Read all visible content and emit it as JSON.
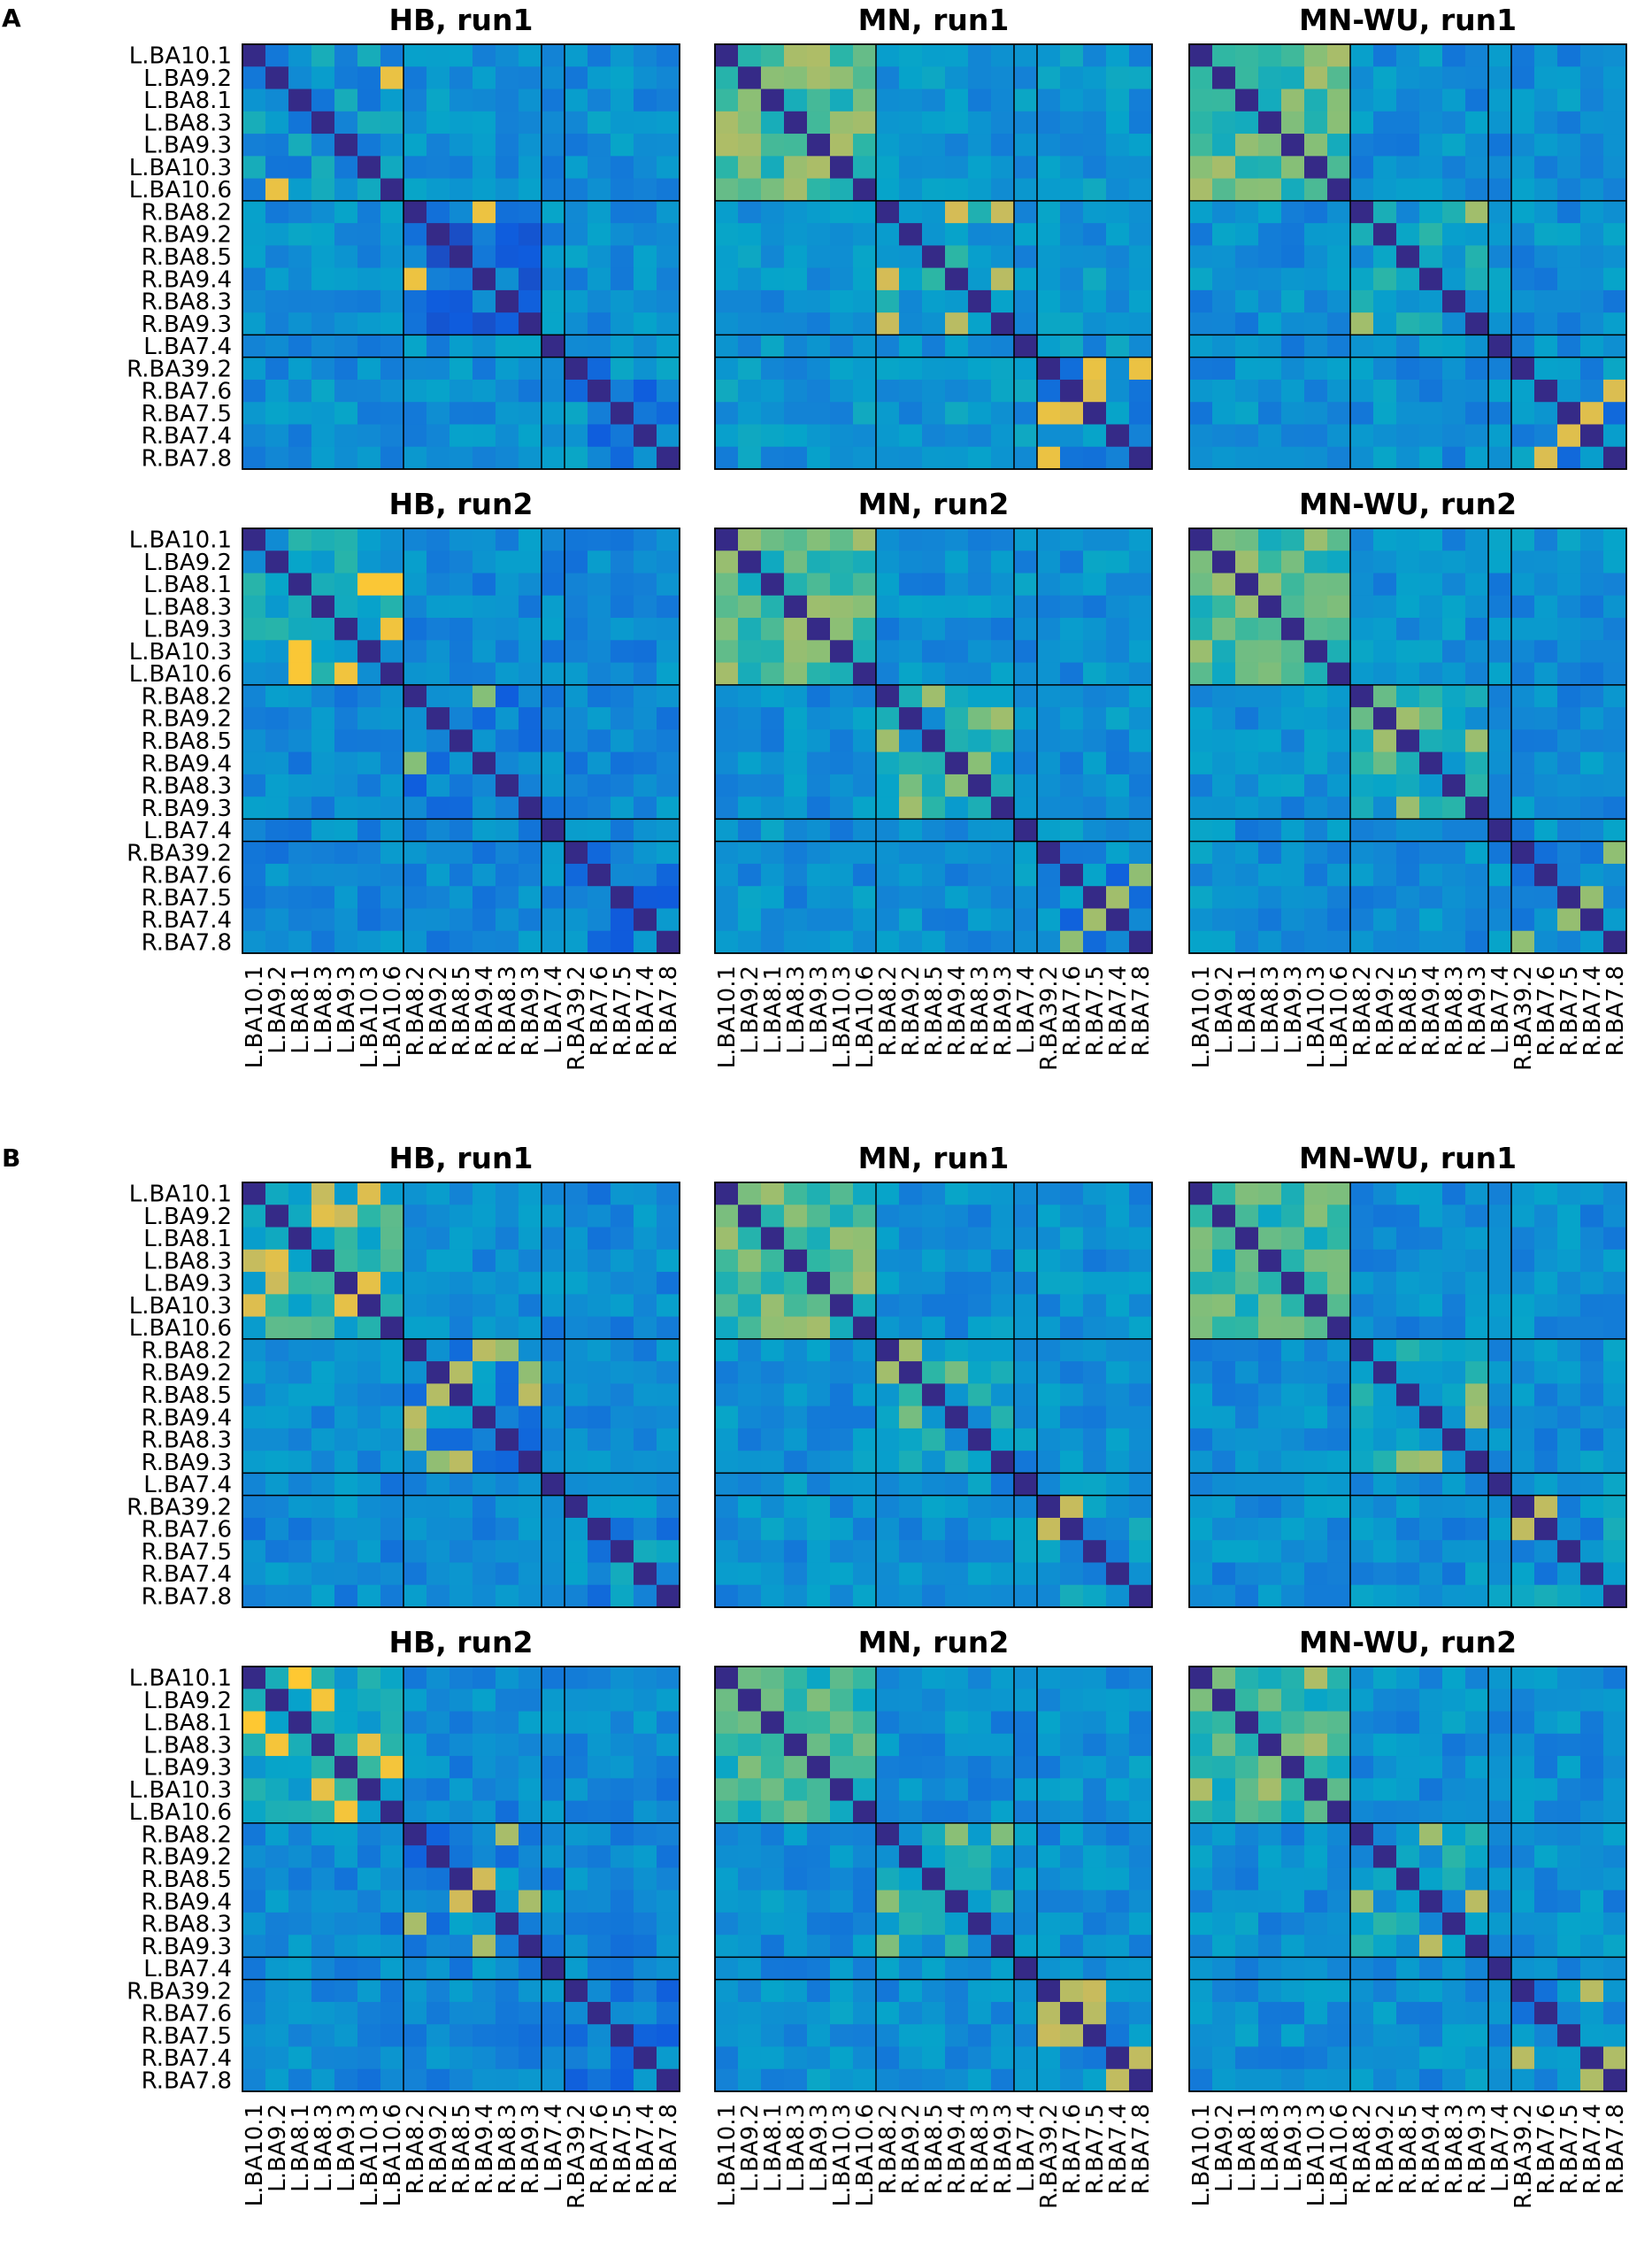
{
  "figure": {
    "panel_labels": [
      "A",
      "B"
    ],
    "labels": [
      "L.BA10.1",
      "L.BA9.2",
      "L.BA8.1",
      "L.BA8.3",
      "L.BA9.3",
      "L.BA10.3",
      "L.BA10.6",
      "R.BA8.2",
      "R.BA9.2",
      "R.BA8.5",
      "R.BA9.4",
      "R.BA8.3",
      "R.BA9.3",
      "L.BA7.4",
      "R.BA39.2",
      "R.BA7.6",
      "R.BA7.5",
      "R.BA7.4",
      "R.BA7.8"
    ],
    "groups": [
      [
        0,
        6
      ],
      [
        7,
        12
      ],
      [
        13,
        13
      ],
      [
        14,
        18
      ]
    ],
    "colormap": [
      "#352a87",
      "#0f5cdd",
      "#1481d6",
      "#06a4ca",
      "#2eb7a4",
      "#87bf77",
      "#d1bb59",
      "#fec832",
      "#f9fb0e"
    ]
  },
  "chart_data": [
    {
      "type": "heatmap",
      "panel": "A",
      "title": "HB, run1",
      "base": [
        0.34,
        0.22,
        0.24,
        0.24
      ],
      "within": 0.3,
      "hot": [
        0.78,
        0.74,
        0.7,
        0.3
      ]
    },
    {
      "type": "heatmap",
      "panel": "A",
      "title": "MN, run1",
      "base": [
        0.55,
        0.4,
        0.3,
        0.3
      ],
      "within": 0.32,
      "hot": [
        0.62,
        0.7,
        0.48,
        0.76
      ]
    },
    {
      "type": "heatmap",
      "panel": "A",
      "title": "MN-WU, run1",
      "base": [
        0.55,
        0.4,
        0.3,
        0.3
      ],
      "within": 0.3,
      "hot": [
        0.62,
        0.66,
        0.48,
        0.72
      ]
    },
    {
      "type": "heatmap",
      "panel": "A",
      "title": "HB, run2",
      "base": [
        0.42,
        0.26,
        0.26,
        0.26
      ],
      "within": 0.28,
      "hot": [
        0.78,
        0.6,
        0.4,
        0.3
      ]
    },
    {
      "type": "heatmap",
      "panel": "A",
      "title": "MN, run2",
      "base": [
        0.52,
        0.4,
        0.28,
        0.28
      ],
      "within": 0.3,
      "hot": [
        0.58,
        0.58,
        0.44,
        0.58
      ]
    },
    {
      "type": "heatmap",
      "panel": "A",
      "title": "MN-WU, run2",
      "base": [
        0.52,
        0.4,
        0.28,
        0.28
      ],
      "within": 0.3,
      "hot": [
        0.6,
        0.58,
        0.44,
        0.58
      ]
    },
    {
      "type": "heatmap",
      "panel": "B",
      "title": "HB, run1",
      "base": [
        0.48,
        0.3,
        0.28,
        0.28
      ],
      "within": 0.28,
      "hot": [
        0.72,
        0.62,
        0.44,
        0.34
      ]
    },
    {
      "type": "heatmap",
      "panel": "B",
      "title": "MN, run1",
      "base": [
        0.52,
        0.4,
        0.3,
        0.34
      ],
      "within": 0.3,
      "hot": [
        0.58,
        0.6,
        0.46,
        0.64
      ]
    },
    {
      "type": "heatmap",
      "panel": "B",
      "title": "MN-WU, run1",
      "base": [
        0.52,
        0.4,
        0.3,
        0.34
      ],
      "within": 0.3,
      "hot": [
        0.6,
        0.62,
        0.46,
        0.66
      ]
    },
    {
      "type": "heatmap",
      "panel": "B",
      "title": "HB, run2",
      "base": [
        0.44,
        0.28,
        0.26,
        0.26
      ],
      "within": 0.28,
      "hot": [
        0.8,
        0.66,
        0.42,
        0.34
      ]
    },
    {
      "type": "heatmap",
      "panel": "B",
      "title": "MN, run2",
      "base": [
        0.52,
        0.4,
        0.3,
        0.32
      ],
      "within": 0.3,
      "hot": [
        0.58,
        0.6,
        0.46,
        0.64
      ]
    },
    {
      "type": "heatmap",
      "panel": "B",
      "title": "MN-WU, run2",
      "base": [
        0.52,
        0.4,
        0.3,
        0.32
      ],
      "within": 0.3,
      "hot": [
        0.6,
        0.66,
        0.46,
        0.62
      ]
    }
  ]
}
